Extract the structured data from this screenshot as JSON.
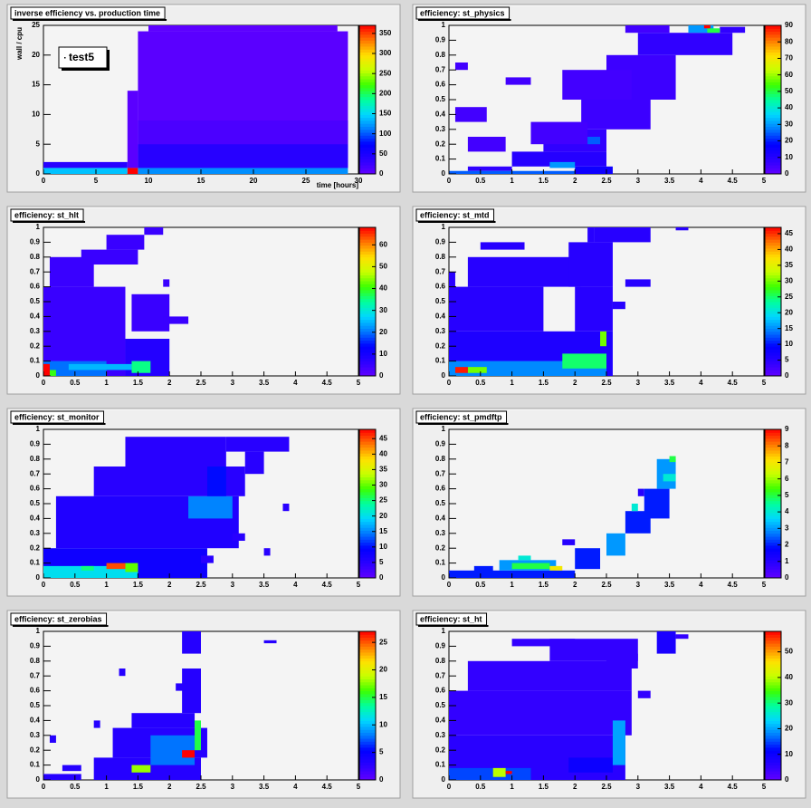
{
  "palette": [
    "#6100ff",
    "#2a00ff",
    "#0000ff",
    "#0078ff",
    "#00d7ff",
    "#00ff9e",
    "#3cff00",
    "#c8ff00",
    "#ffe100",
    "#ff7800",
    "#ff0000"
  ],
  "chart_data": [
    {
      "type": "heatmap",
      "title": "inverse efficiency vs. production time",
      "x_label": "time [hours]",
      "y_label": "wall / cpu",
      "legend": "test5",
      "xlim": [
        0,
        30
      ],
      "ylim": [
        0,
        25
      ],
      "zlim": [
        0,
        370
      ],
      "xticks": [
        0,
        5,
        10,
        15,
        20,
        25,
        30
      ],
      "yticks": [
        0,
        5,
        10,
        15,
        20,
        25
      ],
      "zticks": [
        0,
        50,
        100,
        150,
        200,
        250,
        300,
        350
      ],
      "cells": {
        "x0": [
          9,
          10,
          8,
          9,
          9,
          0,
          0,
          8,
          9
        ],
        "x1": [
          29,
          28,
          9,
          29,
          29,
          8,
          8,
          9,
          29
        ],
        "y0": [
          1,
          24,
          1,
          5,
          1,
          1,
          0,
          0,
          0
        ],
        "y1": [
          24,
          25,
          14,
          9,
          5,
          2,
          1,
          1,
          1
        ],
        "values": [
          5,
          3,
          5,
          15,
          40,
          40,
          140,
          370,
          120
        ]
      }
    },
    {
      "type": "heatmap",
      "title": "efficiency: st_physics",
      "xlim": [
        0,
        5
      ],
      "ylim": [
        0,
        1
      ],
      "zlim": [
        0,
        90
      ],
      "xticks": [
        0,
        0.5,
        1,
        1.5,
        2,
        2.5,
        3,
        3.5,
        4,
        4.5,
        5
      ],
      "yticks": [
        0,
        0.1,
        0.2,
        0.3,
        0.4,
        0.5,
        0.6,
        0.7,
        0.8,
        0.9,
        1
      ],
      "zticks": [
        0,
        10,
        20,
        30,
        40,
        50,
        60,
        70,
        80,
        90
      ],
      "cells": {
        "x0": [
          0.3,
          1,
          1.5,
          0.3,
          0.1,
          2.1,
          2.5,
          1.8,
          3,
          2.8,
          1.3,
          0.9,
          0.1,
          4.3,
          0,
          2,
          1.6,
          2.2,
          3.8,
          4.1,
          4.05
        ],
        "x1": [
          1,
          2.5,
          2.5,
          0.9,
          0.6,
          3.2,
          3.6,
          2.9,
          4.5,
          3.5,
          2.2,
          1.3,
          0.3,
          4.7,
          2,
          2.6,
          2,
          2.4,
          4.2,
          4.3,
          4.15
        ],
        "y0": [
          0.02,
          0.05,
          0.15,
          0.15,
          0.35,
          0.3,
          0.5,
          0.5,
          0.8,
          0.95,
          0.2,
          0.6,
          0.7,
          0.95,
          0,
          0,
          0.04,
          0.2,
          0.95,
          0.95,
          0.98
        ],
        "y1": [
          0.05,
          0.15,
          0.3,
          0.25,
          0.45,
          0.5,
          0.8,
          0.7,
          0.95,
          1,
          0.35,
          0.65,
          0.75,
          0.99,
          0.02,
          0.05,
          0.08,
          0.25,
          1,
          0.98,
          1
        ],
        "values": [
          8,
          10,
          8,
          5,
          5,
          6,
          6,
          5,
          8,
          5,
          5,
          5,
          5,
          8,
          25,
          15,
          30,
          25,
          30,
          50,
          90
        ]
      }
    },
    {
      "type": "heatmap",
      "title": "efficiency: st_hlt",
      "xlim": [
        0,
        5
      ],
      "ylim": [
        0,
        1
      ],
      "zlim": [
        0,
        68
      ],
      "xticks": [
        0,
        0.5,
        1,
        1.5,
        2,
        2.5,
        3,
        3.5,
        4,
        4.5,
        5
      ],
      "yticks": [
        0,
        0.1,
        0.2,
        0.3,
        0.4,
        0.5,
        0.6,
        0.7,
        0.8,
        0.9,
        1
      ],
      "zticks": [
        0,
        10,
        20,
        30,
        40,
        50,
        60
      ],
      "cells": {
        "x0": [
          0,
          0.1,
          0.6,
          1,
          1.6,
          1.3,
          1.4,
          1.9,
          1.9,
          0,
          0.4,
          1.4,
          0.1,
          0
        ],
        "x1": [
          1.3,
          0.8,
          1.5,
          1.6,
          1.9,
          2,
          2,
          2.3,
          2,
          1,
          1.4,
          1.7,
          0.2,
          0.1
        ],
        "y0": [
          0,
          0.6,
          0.75,
          0.85,
          0.95,
          0,
          0.3,
          0.35,
          0.6,
          0,
          0.04,
          0.02,
          0,
          0
        ],
        "y1": [
          0.6,
          0.8,
          0.85,
          0.95,
          1,
          0.25,
          0.55,
          0.4,
          0.65,
          0.1,
          0.08,
          0.1,
          0.04,
          0.08
        ],
        "values": [
          5,
          5,
          5,
          5,
          5,
          8,
          5,
          5,
          5,
          20,
          25,
          35,
          40,
          68
        ]
      }
    },
    {
      "type": "heatmap",
      "title": "efficiency: st_mtd",
      "xlim": [
        0,
        5
      ],
      "ylim": [
        0,
        1
      ],
      "zlim": [
        0,
        47
      ],
      "xticks": [
        0,
        0.5,
        1,
        1.5,
        2,
        2.5,
        3,
        3.5,
        4,
        4.5,
        5
      ],
      "yticks": [
        0,
        0.1,
        0.2,
        0.3,
        0.4,
        0.5,
        0.6,
        0.7,
        0.8,
        0.9,
        1
      ],
      "zticks": [
        0,
        5,
        10,
        15,
        20,
        25,
        30,
        35,
        40,
        45
      ],
      "cells": {
        "x0": [
          0,
          0,
          0.3,
          0.5,
          2,
          1.9,
          2.2,
          2.3,
          2.6,
          2.8,
          3.6,
          0,
          0,
          1.8,
          2.4,
          0.3,
          0.1
        ],
        "x1": [
          2.6,
          1.5,
          2.1,
          1.2,
          2.6,
          2.6,
          2.3,
          3.2,
          2.8,
          3.2,
          3.8,
          0.1,
          2.5,
          2.5,
          2.5,
          0.6,
          0.3
        ],
        "y0": [
          0,
          0.3,
          0.6,
          0.85,
          0.3,
          0.6,
          0.9,
          0.9,
          0.45,
          0.6,
          0.98,
          0.6,
          0,
          0.05,
          0.2,
          0.02,
          0.02
        ],
        "y1": [
          0.3,
          0.6,
          0.8,
          0.9,
          0.6,
          0.9,
          1,
          1,
          0.5,
          0.65,
          1,
          0.7,
          0.1,
          0.15,
          0.3,
          0.06,
          0.06
        ],
        "values": [
          6,
          5,
          5,
          5,
          5,
          5,
          5,
          5,
          5,
          5,
          5,
          5,
          15,
          25,
          30,
          30,
          46
        ]
      }
    },
    {
      "type": "heatmap",
      "title": "efficiency: st_monitor",
      "xlim": [
        0,
        5
      ],
      "ylim": [
        0,
        1
      ],
      "zlim": [
        0,
        48
      ],
      "xticks": [
        0,
        0.5,
        1,
        1.5,
        2,
        2.5,
        3,
        3.5,
        4,
        4.5,
        5
      ],
      "yticks": [
        0,
        0.1,
        0.2,
        0.3,
        0.4,
        0.5,
        0.6,
        0.7,
        0.8,
        0.9,
        1
      ],
      "zticks": [
        0,
        5,
        10,
        15,
        20,
        25,
        30,
        35,
        40,
        45
      ],
      "cells": {
        "x0": [
          0,
          0.2,
          0.8,
          1.3,
          2.9,
          3.2,
          2.3,
          2.6,
          3.8,
          3,
          3.5,
          2.5,
          0,
          0.6,
          1.3,
          1
        ],
        "x1": [
          2.6,
          3.1,
          3.2,
          2.9,
          3.9,
          3.5,
          3,
          2.9,
          3.9,
          3.2,
          3.6,
          2.7,
          1.5,
          0.8,
          1.5,
          1.3
        ],
        "y0": [
          0,
          0.2,
          0.55,
          0.75,
          0.85,
          0.7,
          0.4,
          0.55,
          0.45,
          0.25,
          0.15,
          0.1,
          0,
          0.05,
          0.04,
          0.06
        ],
        "y1": [
          0.2,
          0.55,
          0.75,
          0.95,
          0.95,
          0.85,
          0.55,
          0.75,
          0.5,
          0.3,
          0.2,
          0.15,
          0.08,
          0.08,
          0.1,
          0.1
        ],
        "values": [
          8,
          6,
          5,
          5,
          5,
          5,
          15,
          10,
          5,
          5,
          5,
          5,
          20,
          25,
          30,
          45
        ]
      }
    },
    {
      "type": "heatmap",
      "title": "efficiency: st_pmdftp",
      "xlim": [
        0,
        5
      ],
      "ylim": [
        0,
        1
      ],
      "zlim": [
        0,
        9
      ],
      "xticks": [
        0,
        0.5,
        1,
        1.5,
        2,
        2.5,
        3,
        3.5,
        4,
        4.5,
        5
      ],
      "yticks": [
        0,
        0.1,
        0.2,
        0.3,
        0.4,
        0.5,
        0.6,
        0.7,
        0.8,
        0.9,
        1
      ],
      "zticks": [
        0,
        1,
        2,
        3,
        4,
        5,
        6,
        7,
        8,
        9
      ],
      "cells": {
        "x0": [
          0,
          0.8,
          0.4,
          2,
          2.5,
          2.8,
          3.1,
          3.3,
          1.8,
          3,
          1,
          1.6,
          3.4,
          3.5,
          2.9,
          1.1
        ],
        "x1": [
          2,
          1.7,
          0.7,
          2.4,
          2.8,
          3.2,
          3.5,
          3.6,
          2,
          3.1,
          1.6,
          1.8,
          3.6,
          3.6,
          3,
          1.3
        ],
        "y0": [
          0,
          0.05,
          0.04,
          0.06,
          0.15,
          0.3,
          0.4,
          0.6,
          0.22,
          0.55,
          0.06,
          0.05,
          0.65,
          0.78,
          0.45,
          0.12
        ],
        "y1": [
          0.05,
          0.12,
          0.08,
          0.2,
          0.3,
          0.45,
          0.6,
          0.8,
          0.26,
          0.6,
          0.1,
          0.08,
          0.7,
          0.82,
          0.5,
          0.15
        ],
        "values": [
          2,
          3,
          2,
          2,
          3,
          2,
          2,
          3,
          1,
          1,
          5,
          7,
          4,
          5,
          4,
          4
        ]
      }
    },
    {
      "type": "heatmap",
      "title": "efficiency: st_zerobias",
      "xlim": [
        0,
        5
      ],
      "ylim": [
        0,
        1
      ],
      "zlim": [
        0,
        27
      ],
      "xticks": [
        0,
        0.5,
        1,
        1.5,
        2,
        2.5,
        3,
        3.5,
        4,
        4.5,
        5
      ],
      "yticks": [
        0,
        0.1,
        0.2,
        0.3,
        0.4,
        0.5,
        0.6,
        0.7,
        0.8,
        0.9,
        1
      ],
      "zticks": [
        0,
        5,
        10,
        15,
        20,
        25
      ],
      "cells": {
        "x0": [
          0,
          0.8,
          1.1,
          1.4,
          2.2,
          2.2,
          2.1,
          0.3,
          0.1,
          1.2,
          3.5,
          0.8,
          1.7,
          1.4,
          2.4,
          2.2
        ],
        "x1": [
          0.6,
          2.5,
          2.6,
          2.4,
          2.5,
          2.5,
          2.3,
          0.6,
          0.2,
          1.3,
          3.7,
          0.9,
          2.4,
          1.7,
          2.5,
          2.4
        ],
        "y0": [
          0,
          0,
          0.15,
          0.35,
          0.45,
          0.85,
          0.6,
          0.06,
          0.25,
          0.7,
          0.92,
          0.35,
          0.1,
          0.05,
          0.2,
          0.15
        ],
        "y1": [
          0.04,
          0.15,
          0.35,
          0.45,
          0.75,
          1,
          0.65,
          0.1,
          0.3,
          0.75,
          0.94,
          0.4,
          0.3,
          0.1,
          0.4,
          0.2
        ],
        "values": [
          3,
          3,
          3,
          3,
          3,
          3,
          3,
          3,
          3,
          3,
          3,
          3,
          8,
          18,
          15,
          27
        ]
      }
    },
    {
      "type": "heatmap",
      "title": "efficiency: st_ht",
      "xlim": [
        0,
        5
      ],
      "ylim": [
        0,
        1
      ],
      "zlim": [
        0,
        58
      ],
      "xticks": [
        0,
        0.5,
        1,
        1.5,
        2,
        2.5,
        3,
        3.5,
        4,
        4.5,
        5
      ],
      "yticks": [
        0,
        0.1,
        0.2,
        0.3,
        0.4,
        0.5,
        0.6,
        0.7,
        0.8,
        0.9,
        1
      ],
      "zticks": [
        0,
        10,
        20,
        30,
        40,
        50
      ],
      "cells": {
        "x0": [
          0,
          0,
          0.3,
          1.6,
          3.3,
          3.6,
          3,
          2.5,
          1,
          1.9,
          2.6,
          0,
          0.7,
          0.9
        ],
        "x1": [
          2.8,
          2.9,
          2.9,
          3,
          3.6,
          3.8,
          3.2,
          3,
          2,
          2.6,
          2.8,
          1.3,
          0.9,
          1
        ],
        "y0": [
          0,
          0.3,
          0.6,
          0.8,
          0.85,
          0.95,
          0.55,
          0.75,
          0.9,
          0.05,
          0.1,
          0,
          0.02,
          0.04
        ],
        "y1": [
          0.3,
          0.6,
          0.8,
          0.95,
          1,
          0.98,
          0.6,
          0.85,
          0.95,
          0.15,
          0.4,
          0.08,
          0.08,
          0.06
        ],
        "values": [
          6,
          5,
          5,
          5,
          8,
          5,
          5,
          5,
          5,
          10,
          20,
          15,
          40,
          58
        ]
      }
    }
  ]
}
